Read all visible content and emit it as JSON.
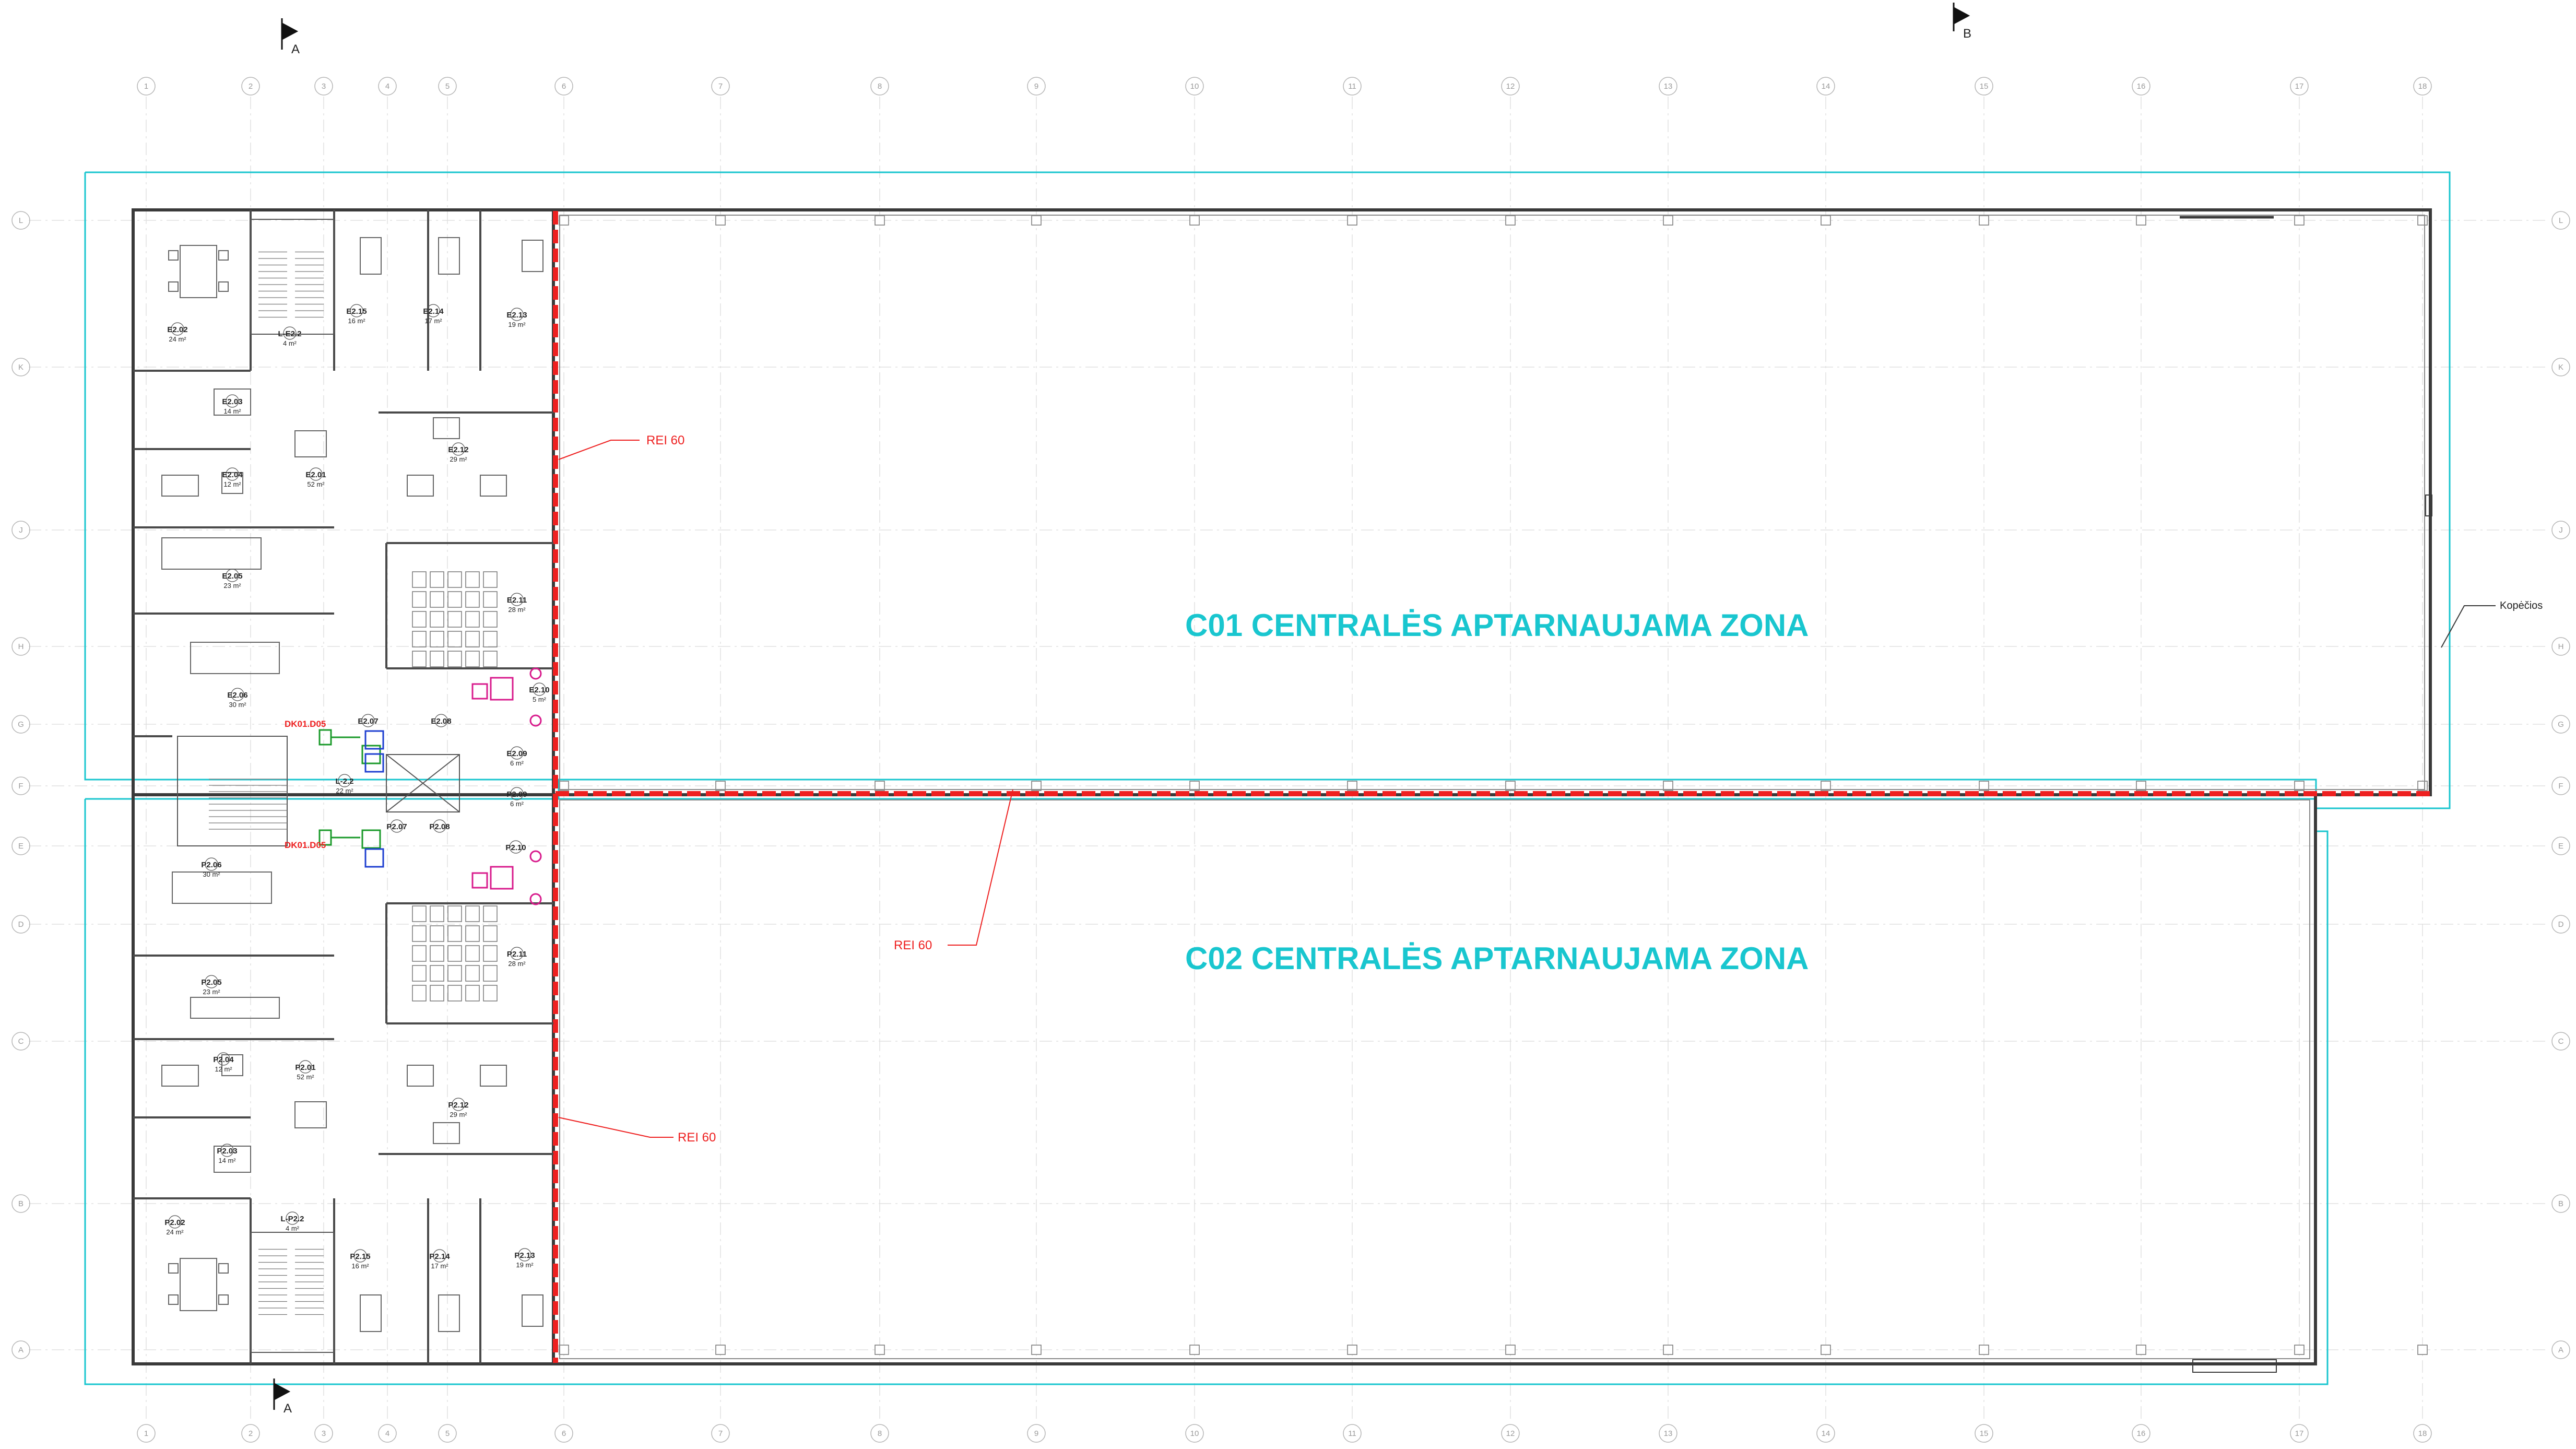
{
  "colors": {
    "zone_outline": "#19c6cf",
    "fire_wall": "#ee2020",
    "wall": "#3a3a3a",
    "grid": "#d6d6d6",
    "exit_sign": "#1a9a2a",
    "sanitary": "#d81b8c",
    "accessible": "#1e3fd0"
  },
  "section_marks": [
    {
      "id": "section-a-top",
      "label": "A"
    },
    {
      "id": "section-b-top",
      "label": "B"
    },
    {
      "id": "section-a-bottom",
      "label": "A"
    }
  ],
  "grid_columns": [
    "1",
    "2",
    "3",
    "4",
    "5",
    "6",
    "7",
    "8",
    "9",
    "10",
    "11",
    "12",
    "13",
    "14",
    "15",
    "16",
    "17",
    "18"
  ],
  "grid_rows": [
    "L",
    "K",
    "J",
    "H",
    "G",
    "F",
    "E",
    "D",
    "C",
    "B",
    "A"
  ],
  "zones": [
    {
      "id": "zone-c01",
      "label": "C01 CENTRALĖS APTARNAUJAMA ZONA"
    },
    {
      "id": "zone-c02",
      "label": "C02 CENTRALĖS APTARNAUJAMA ZONA"
    }
  ],
  "fire_ratings": [
    {
      "id": "fire-rating-upper",
      "label": "REI 60"
    },
    {
      "id": "fire-rating-middle",
      "label": "REI 60"
    },
    {
      "id": "fire-rating-lower",
      "label": "REI 60"
    }
  ],
  "door_tags": [
    {
      "id": "door-dk01-upper",
      "label": "DK01.D05"
    },
    {
      "id": "door-dk01-lower",
      "label": "DK01.D05"
    }
  ],
  "annotations": {
    "ladder_note": "Kopėčios"
  },
  "rooms": [
    {
      "code": "E2.02",
      "area": "24 m²"
    },
    {
      "code": "L-E2.2",
      "area": "4 m²"
    },
    {
      "code": "E2.15",
      "area": "16 m²"
    },
    {
      "code": "E2.14",
      "area": "17 m²"
    },
    {
      "code": "E2.13",
      "area": "19 m²"
    },
    {
      "code": "E2.03",
      "area": "14 m²"
    },
    {
      "code": "E2.12",
      "area": "29 m²"
    },
    {
      "code": "E2.04",
      "area": "12 m²"
    },
    {
      "code": "E2.01",
      "area": "52 m²"
    },
    {
      "code": "E2.05",
      "area": "23 m²"
    },
    {
      "code": "E2.11",
      "area": "28 m²"
    },
    {
      "code": "E2.06",
      "area": "30 m²"
    },
    {
      "code": "E2.10",
      "area": "5 m²"
    },
    {
      "code": "E2.07",
      "area": ""
    },
    {
      "code": "E2.08",
      "area": ""
    },
    {
      "code": "E2.09",
      "area": "6 m²"
    },
    {
      "code": "L-2.2",
      "area": "22 m²"
    },
    {
      "code": "P2.09",
      "area": "6 m²"
    },
    {
      "code": "P2.07",
      "area": ""
    },
    {
      "code": "P2.08",
      "area": ""
    },
    {
      "code": "P2.10",
      "area": ""
    },
    {
      "code": "P2.06",
      "area": "30 m²"
    },
    {
      "code": "P2.11",
      "area": "28 m²"
    },
    {
      "code": "P2.05",
      "area": "23 m²"
    },
    {
      "code": "P2.04",
      "area": "12 m²"
    },
    {
      "code": "P2.01",
      "area": "52 m²"
    },
    {
      "code": "P2.12",
      "area": "29 m²"
    },
    {
      "code": "P2.03",
      "area": "14 m²"
    },
    {
      "code": "P2.02",
      "area": "24 m²"
    },
    {
      "code": "L-P2.2",
      "area": "4 m²"
    },
    {
      "code": "P2.15",
      "area": "16 m²"
    },
    {
      "code": "P2.14",
      "area": "17 m²"
    },
    {
      "code": "P2.13",
      "area": "19 m²"
    }
  ]
}
